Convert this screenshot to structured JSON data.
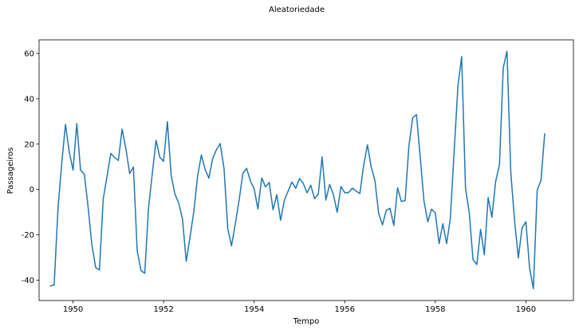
{
  "chart_data": {
    "type": "line",
    "title": "Aleatoriedade",
    "xlabel": "Tempo",
    "ylabel": "Passageiros",
    "xlim": [
      1949.25,
      1961.05
    ],
    "ylim": [
      -49,
      66
    ],
    "xticks": [
      1950,
      1952,
      1954,
      1956,
      1958,
      1960
    ],
    "yticks": [
      -40,
      -20,
      0,
      20,
      40,
      60
    ],
    "grid": false,
    "series": [
      {
        "color": "#1f77b4",
        "x_start_year": 1949.5,
        "x_step_months": 1,
        "values": [
          -42.6,
          -42.1,
          -8.5,
          11.5,
          28.7,
          16.4,
          8.5,
          29.1,
          8.5,
          6.6,
          -7.9,
          -24.4,
          -34.5,
          -35.5,
          -4.2,
          5.7,
          15.9,
          14.1,
          12.8,
          26.6,
          18.1,
          7.0,
          9.9,
          -26.9,
          -35.8,
          -37.0,
          -8.3,
          6.8,
          21.7,
          14.2,
          12.4,
          29.9,
          6.3,
          -2.0,
          -6.0,
          -13.0,
          -31.7,
          -21.0,
          -9.8,
          5.7,
          15.2,
          8.8,
          5.0,
          13.7,
          17.5,
          20.2,
          9.3,
          -17.3,
          -24.9,
          -15.2,
          -4.8,
          7.1,
          9.3,
          3.8,
          0.2,
          -8.6,
          5.1,
          1.1,
          3.1,
          -9.0,
          -2.3,
          -13.6,
          -4.7,
          -0.7,
          3.3,
          0.5,
          4.8,
          2.7,
          -1.5,
          1.9,
          -4.1,
          -2.1,
          14.4,
          -4.7,
          2.2,
          -2.3,
          -10.1,
          1.3,
          -1.4,
          -1.4,
          0.6,
          -0.7,
          -1.8,
          10.5,
          19.7,
          10.0,
          4.0,
          -10.6,
          -15.6,
          -9.3,
          -8.3,
          -15.9,
          0.7,
          -5.3,
          -4.9,
          19.1,
          31.6,
          33.0,
          14.3,
          -5.0,
          -14.3,
          -8.7,
          -10.3,
          -23.9,
          -15.1,
          -23.9,
          -12.6,
          17.2,
          45.6,
          58.6,
          0.6,
          -10.3,
          -31.0,
          -33.1,
          -17.6,
          -28.8,
          -3.6,
          -12.3,
          3.5,
          11.0,
          53.7,
          61.0,
          7.3,
          -13.6,
          -30.2,
          -17.0,
          -14.3,
          -34.9,
          -43.8,
          -0.3,
          4.0,
          24.6
        ]
      }
    ]
  }
}
